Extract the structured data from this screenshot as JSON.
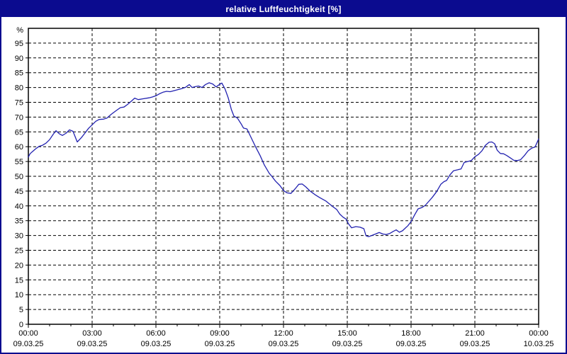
{
  "window": {
    "title": "relative Luftfeuchtigkeit [%]"
  },
  "colors": {
    "titlebar": "#0b0b8f",
    "border": "#0b0b8f",
    "line": "#2222b0",
    "grid": "#000000",
    "frame": "#000000",
    "background": "#ffffff",
    "text": "#000000"
  },
  "chart_data": {
    "type": "line",
    "title": "relative Luftfeuchtigkeit [%]",
    "ylabel": "%",
    "xlabel": "",
    "legend": "none",
    "grid": "dashed",
    "xlim_hours": [
      0,
      24
    ],
    "ylim": [
      0,
      100
    ],
    "y_ticks": [
      0,
      5,
      10,
      15,
      20,
      25,
      30,
      35,
      40,
      45,
      50,
      55,
      60,
      65,
      70,
      75,
      80,
      85,
      90,
      95
    ],
    "x_minor_tick_hours": 1,
    "x_major_ticks": [
      {
        "hour": 0,
        "time": "00:00",
        "date": "09.03.25"
      },
      {
        "hour": 3,
        "time": "03:00",
        "date": "09.03.25"
      },
      {
        "hour": 6,
        "time": "06:00",
        "date": "09.03.25"
      },
      {
        "hour": 9,
        "time": "09:00",
        "date": "09.03.25"
      },
      {
        "hour": 12,
        "time": "12:00",
        "date": "09.03.25"
      },
      {
        "hour": 15,
        "time": "15:00",
        "date": "09.03.25"
      },
      {
        "hour": 18,
        "time": "18:00",
        "date": "09.03.25"
      },
      {
        "hour": 21,
        "time": "21:00",
        "date": "09.03.25"
      },
      {
        "hour": 24,
        "time": "00:00",
        "date": "10.03.25"
      }
    ],
    "series": [
      {
        "name": "relative Luftfeuchtigkeit",
        "color": "#2222b0",
        "points": [
          [
            0.0,
            56.5
          ],
          [
            0.08,
            57.6
          ],
          [
            0.17,
            58.2
          ],
          [
            0.33,
            59.2
          ],
          [
            0.5,
            60.1
          ],
          [
            0.67,
            60.5
          ],
          [
            0.83,
            61.2
          ],
          [
            1.0,
            62.4
          ],
          [
            1.17,
            64.2
          ],
          [
            1.3,
            65.4
          ],
          [
            1.45,
            64.4
          ],
          [
            1.6,
            63.8
          ],
          [
            1.78,
            64.6
          ],
          [
            1.93,
            65.7
          ],
          [
            2.1,
            65.2
          ],
          [
            2.3,
            61.6
          ],
          [
            2.5,
            63.1
          ],
          [
            2.67,
            64.7
          ],
          [
            2.83,
            66.2
          ],
          [
            3.0,
            67.4
          ],
          [
            3.17,
            68.6
          ],
          [
            3.33,
            69.2
          ],
          [
            3.53,
            69.3
          ],
          [
            3.7,
            69.7
          ],
          [
            3.87,
            70.8
          ],
          [
            4.0,
            71.5
          ],
          [
            4.17,
            72.4
          ],
          [
            4.33,
            73.2
          ],
          [
            4.5,
            73.4
          ],
          [
            4.67,
            74.3
          ],
          [
            4.83,
            75.3
          ],
          [
            5.0,
            76.4
          ],
          [
            5.17,
            75.9
          ],
          [
            5.4,
            76.2
          ],
          [
            5.67,
            76.5
          ],
          [
            5.83,
            76.8
          ],
          [
            6.0,
            77.2
          ],
          [
            6.17,
            77.9
          ],
          [
            6.33,
            78.4
          ],
          [
            6.5,
            78.7
          ],
          [
            6.67,
            78.6
          ],
          [
            6.83,
            78.9
          ],
          [
            7.0,
            79.2
          ],
          [
            7.2,
            79.6
          ],
          [
            7.4,
            80.1
          ],
          [
            7.57,
            81.0
          ],
          [
            7.7,
            80.0
          ],
          [
            7.87,
            80.3
          ],
          [
            8.0,
            80.5
          ],
          [
            8.17,
            80.0
          ],
          [
            8.33,
            81.0
          ],
          [
            8.5,
            81.6
          ],
          [
            8.67,
            81.2
          ],
          [
            8.83,
            80.2
          ],
          [
            9.0,
            81.1
          ],
          [
            9.1,
            81.5
          ],
          [
            9.25,
            79.5
          ],
          [
            9.4,
            76.5
          ],
          [
            9.55,
            72.5
          ],
          [
            9.67,
            70.3
          ],
          [
            9.83,
            69.7
          ],
          [
            10.0,
            67.8
          ],
          [
            10.12,
            66.3
          ],
          [
            10.28,
            66.0
          ],
          [
            10.45,
            63.5
          ],
          [
            10.67,
            60.2
          ],
          [
            10.9,
            57.0
          ],
          [
            11.1,
            53.8
          ],
          [
            11.33,
            51.0
          ],
          [
            11.45,
            50.0
          ],
          [
            11.62,
            48.4
          ],
          [
            11.83,
            46.9
          ],
          [
            12.0,
            45.2
          ],
          [
            12.17,
            44.4
          ],
          [
            12.35,
            44.2
          ],
          [
            12.55,
            45.8
          ],
          [
            12.72,
            47.3
          ],
          [
            12.88,
            47.4
          ],
          [
            13.05,
            46.4
          ],
          [
            13.25,
            45.0
          ],
          [
            13.5,
            43.7
          ],
          [
            13.7,
            42.8
          ],
          [
            14.0,
            41.6
          ],
          [
            14.33,
            39.7
          ],
          [
            14.5,
            38.8
          ],
          [
            14.65,
            37.2
          ],
          [
            14.8,
            36.2
          ],
          [
            14.95,
            35.5
          ],
          [
            15.05,
            34.0
          ],
          [
            15.2,
            32.6
          ],
          [
            15.4,
            33.0
          ],
          [
            15.6,
            32.8
          ],
          [
            15.78,
            32.3
          ],
          [
            15.88,
            29.9
          ],
          [
            16.0,
            29.6
          ],
          [
            16.15,
            30.0
          ],
          [
            16.33,
            30.5
          ],
          [
            16.5,
            31.0
          ],
          [
            16.67,
            30.5
          ],
          [
            16.83,
            30.3
          ],
          [
            17.0,
            30.7
          ],
          [
            17.17,
            31.4
          ],
          [
            17.3,
            31.9
          ],
          [
            17.45,
            31.1
          ],
          [
            17.6,
            31.6
          ],
          [
            17.7,
            32.3
          ],
          [
            17.85,
            33.3
          ],
          [
            18.0,
            34.7
          ],
          [
            18.17,
            37.0
          ],
          [
            18.33,
            39.0
          ],
          [
            18.5,
            39.4
          ],
          [
            18.67,
            40.2
          ],
          [
            18.83,
            41.5
          ],
          [
            19.0,
            42.9
          ],
          [
            19.2,
            44.8
          ],
          [
            19.4,
            47.3
          ],
          [
            19.55,
            48.2
          ],
          [
            19.67,
            48.6
          ],
          [
            19.83,
            50.5
          ],
          [
            20.0,
            51.9
          ],
          [
            20.2,
            52.2
          ],
          [
            20.35,
            52.5
          ],
          [
            20.5,
            54.7
          ],
          [
            20.67,
            55.0
          ],
          [
            20.83,
            55.3
          ],
          [
            21.0,
            56.6
          ],
          [
            21.17,
            57.4
          ],
          [
            21.33,
            58.6
          ],
          [
            21.5,
            60.5
          ],
          [
            21.67,
            61.5
          ],
          [
            21.8,
            61.6
          ],
          [
            21.93,
            61.0
          ],
          [
            22.05,
            58.8
          ],
          [
            22.2,
            57.7
          ],
          [
            22.35,
            57.6
          ],
          [
            22.5,
            57.0
          ],
          [
            22.67,
            56.2
          ],
          [
            22.83,
            55.4
          ],
          [
            23.0,
            55.3
          ],
          [
            23.15,
            55.6
          ],
          [
            23.33,
            57.0
          ],
          [
            23.5,
            58.6
          ],
          [
            23.67,
            59.5
          ],
          [
            23.83,
            59.9
          ],
          [
            24.0,
            62.6
          ]
        ]
      }
    ]
  }
}
